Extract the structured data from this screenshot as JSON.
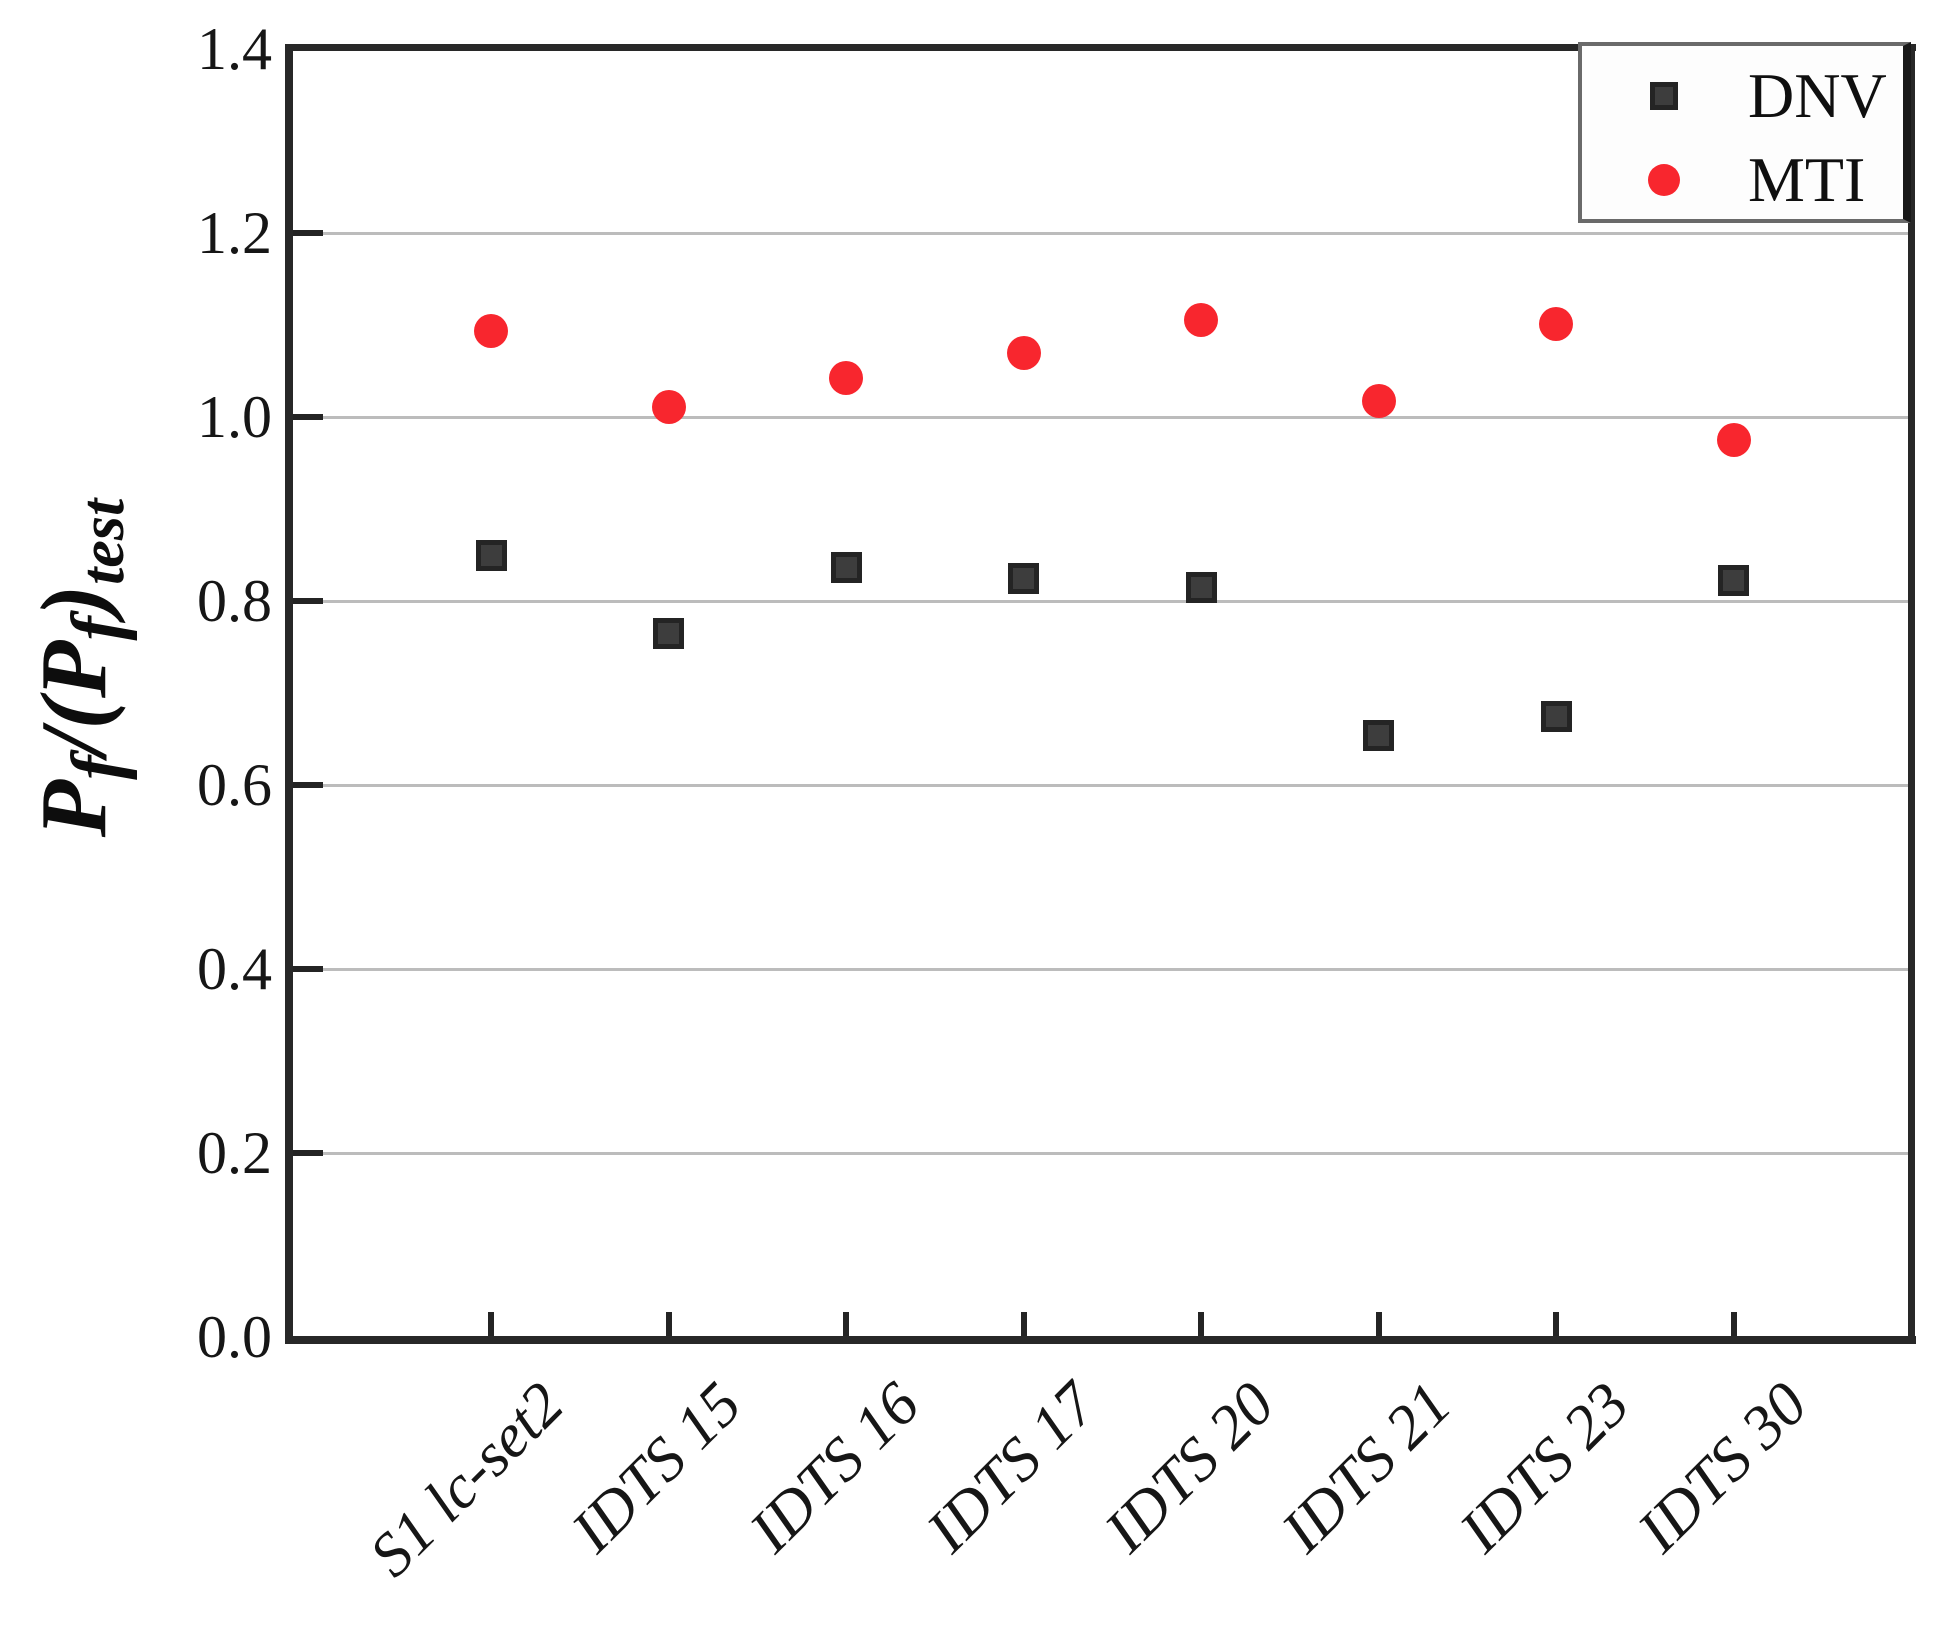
{
  "y_axis": {
    "ticks": [
      "0.0",
      "0.2",
      "0.4",
      "0.6",
      "0.8",
      "1.0",
      "1.2",
      "1.4"
    ],
    "label_parts": {
      "p1": "P",
      "sub1": "f",
      "p2": "/(P",
      "sub2": "f",
      "p3": ")",
      "sub3": "test"
    }
  },
  "legend": {
    "items": [
      {
        "label": "DNV",
        "marker": "square",
        "color": "#3d3d3d"
      },
      {
        "label": "MTI",
        "marker": "circle",
        "color": "#f8262e"
      }
    ]
  },
  "chart_data": {
    "type": "scatter",
    "title": "",
    "xlabel": "",
    "ylabel": "Pf/(Pf)test",
    "categories": [
      "S1 lc-set2",
      "IDTS 15",
      "IDTS 16",
      "IDTS 17",
      "IDTS 20",
      "IDTS 21",
      "IDTS 23",
      "IDTS 30"
    ],
    "series": [
      {
        "name": "DNV",
        "marker": "square",
        "color": "#3d3d3d",
        "values": [
          0.85,
          0.765,
          0.836,
          0.825,
          0.815,
          0.654,
          0.675,
          0.822
        ]
      },
      {
        "name": "MTI",
        "marker": "circle",
        "color": "#f8262e",
        "values": [
          1.094,
          1.011,
          1.042,
          1.07,
          1.105,
          1.017,
          1.101,
          0.975
        ]
      }
    ],
    "ylim": [
      0.0,
      1.4
    ],
    "ytick_step": 0.2,
    "grid": "horizontal",
    "legend_position": "top-right"
  }
}
